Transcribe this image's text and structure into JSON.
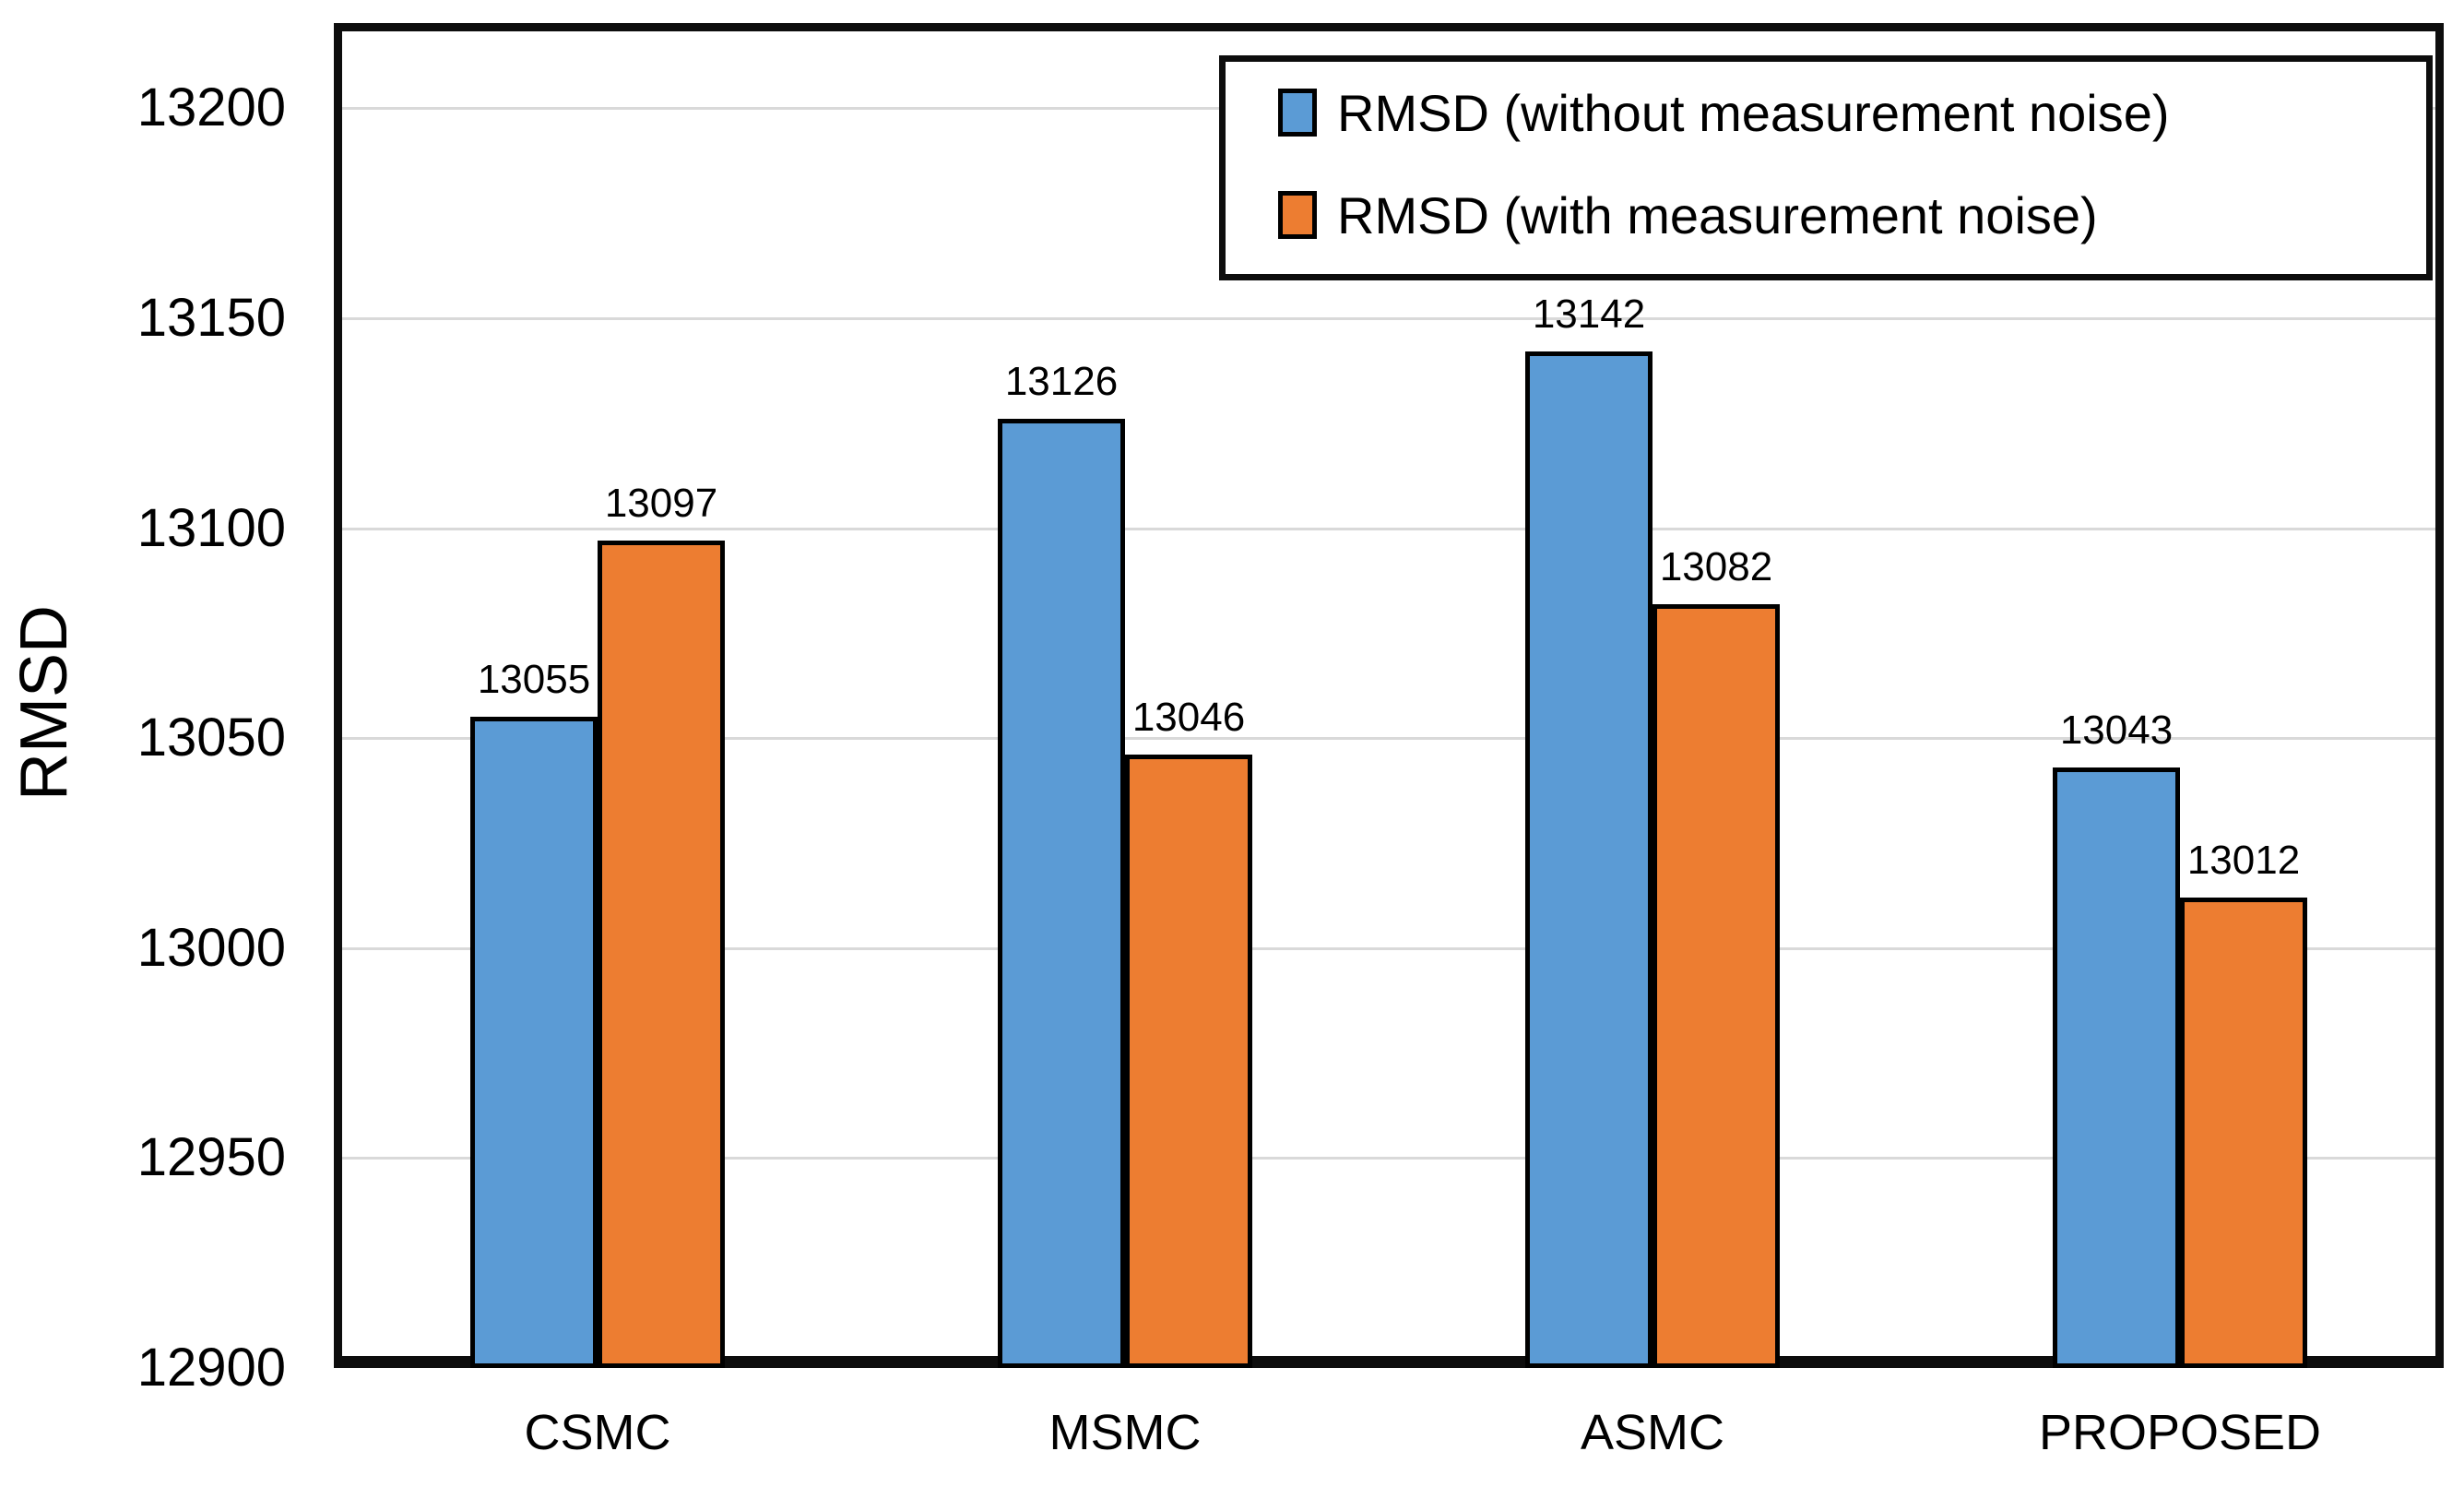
{
  "chart_data": {
    "type": "bar",
    "title": "",
    "xlabel": "",
    "ylabel": "RMSD",
    "categories": [
      "CSMC",
      "MSMC",
      "ASMC",
      "PROPOSED"
    ],
    "series": [
      {
        "name": "RMSD (without measurement noise)",
        "color": "#5B9BD5",
        "values": [
          13055,
          13126,
          13142,
          13043
        ]
      },
      {
        "name": "RMSD (with measurement noise)",
        "color": "#ED7D31",
        "values": [
          13097,
          13046,
          13082,
          13012
        ]
      }
    ],
    "y_ticks": [
      12900,
      12950,
      13000,
      13050,
      13100,
      13150,
      13200
    ],
    "ylim": [
      12900,
      13221
    ],
    "grid": "horizontal-only",
    "gridline_color": "#D9D9D9",
    "bar_outline_color": "#000000",
    "legend_position": "top-right",
    "bar_value_labels_shown": true
  }
}
